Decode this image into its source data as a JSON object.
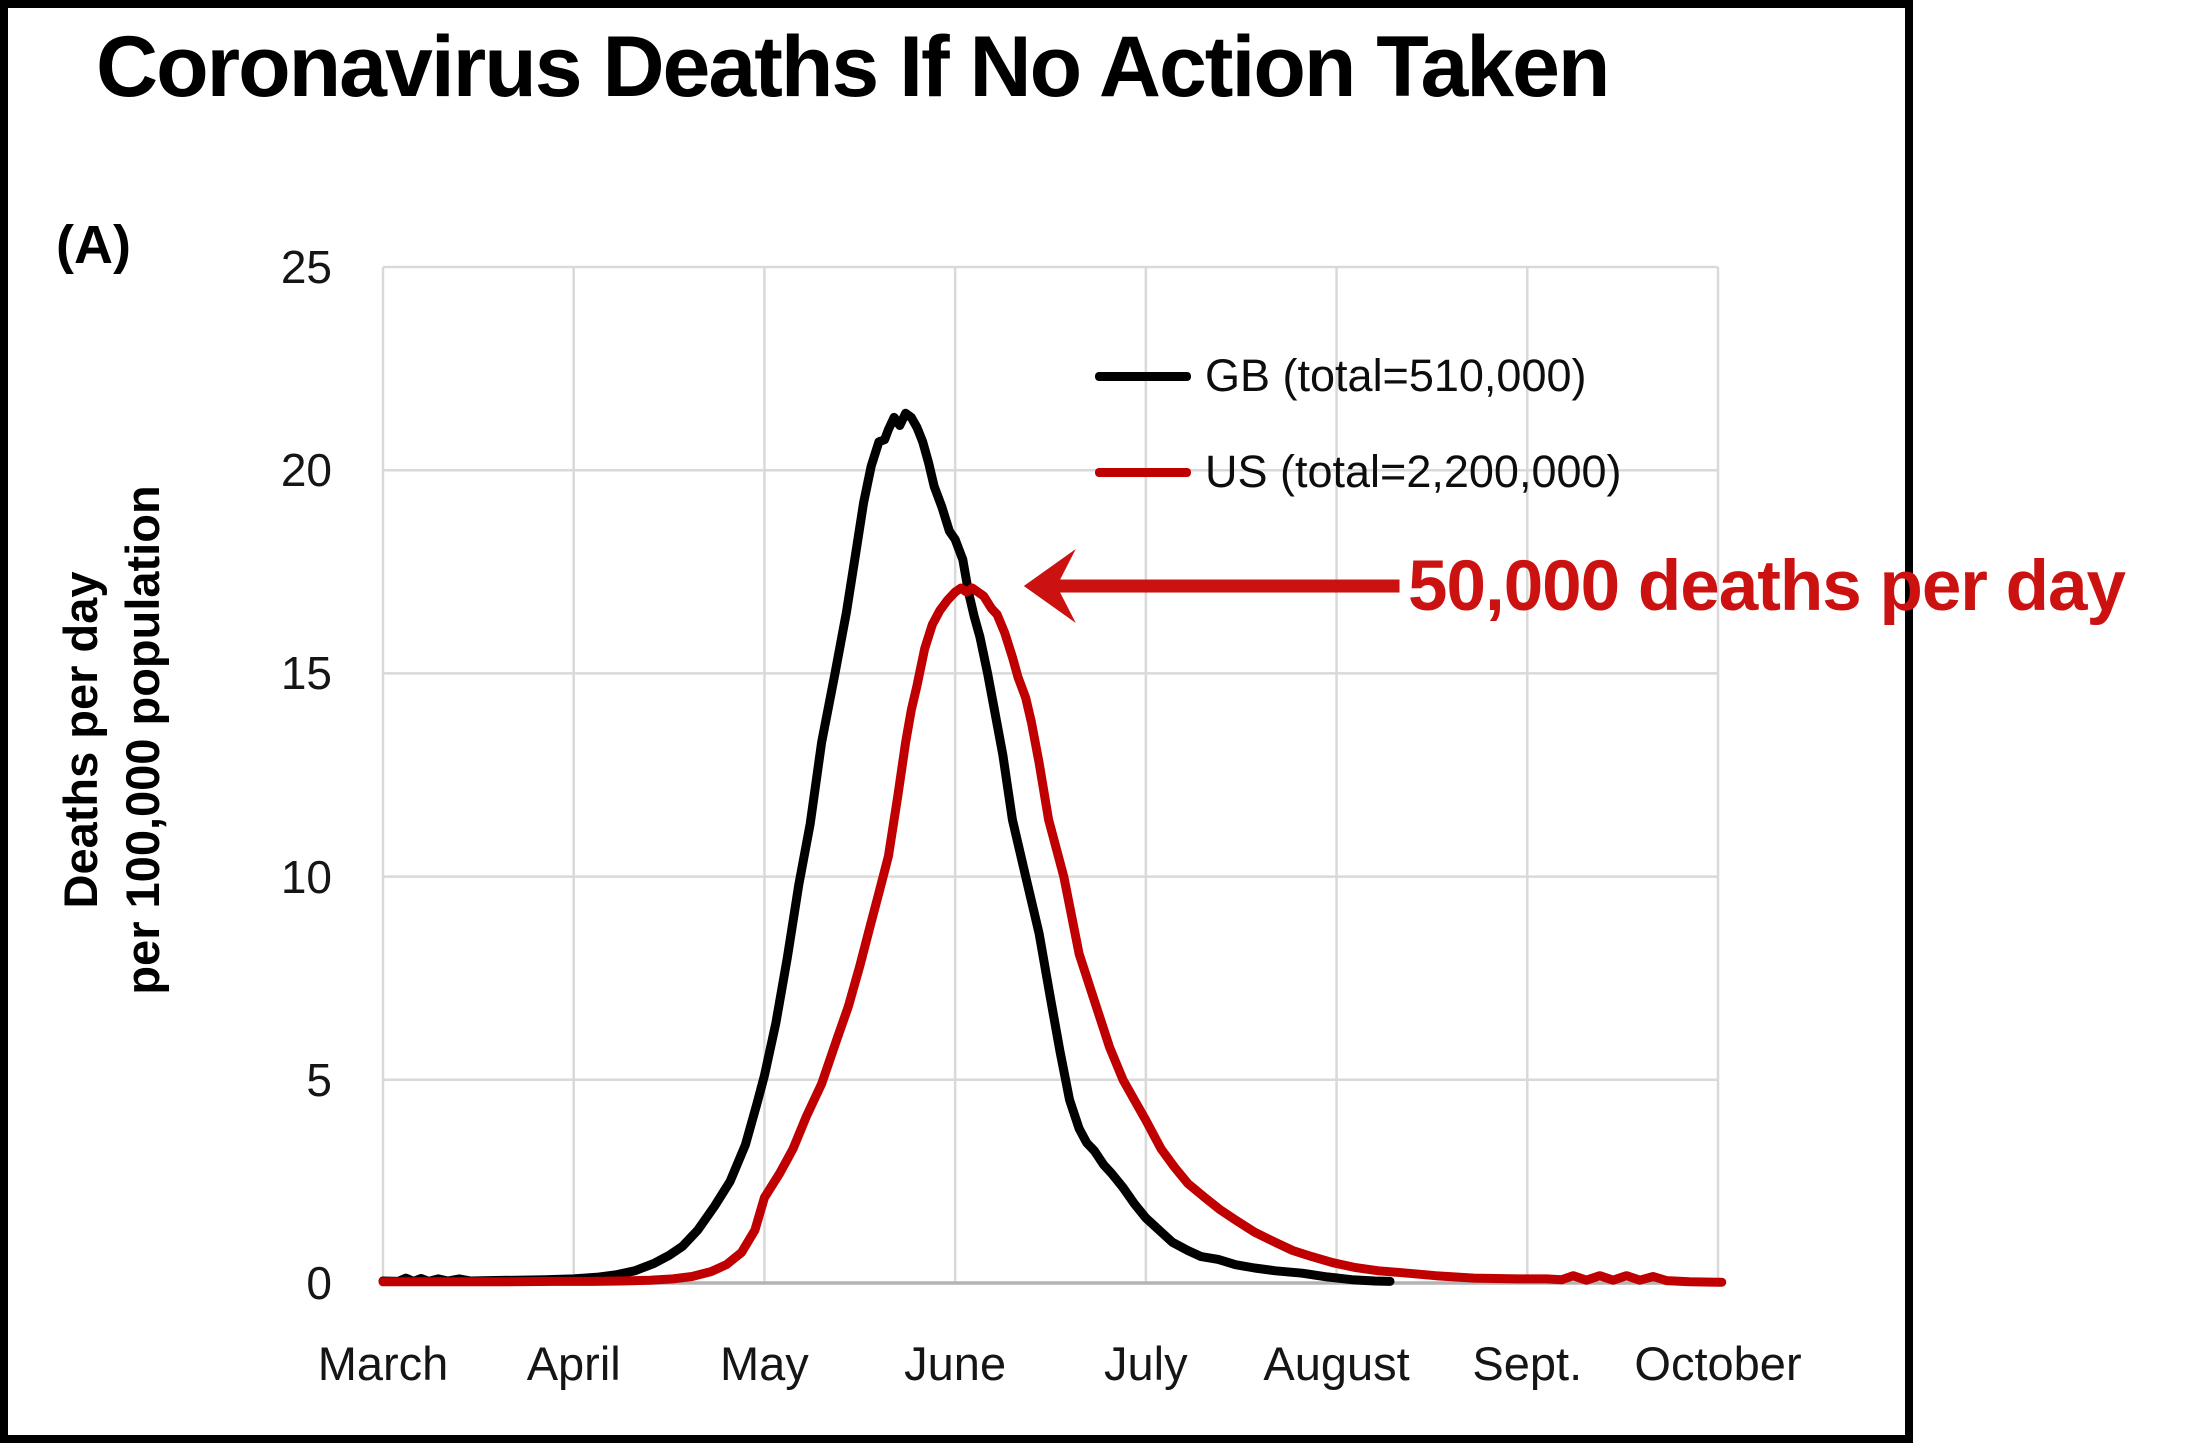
{
  "panel_label": "(A)",
  "title": "Coronavirus Deaths If No Action Taken",
  "y_axis_title": {
    "line1": "Deaths per day",
    "line2": "per 100,000 population"
  },
  "annotation": {
    "text": "50,000 deaths per day",
    "color": "#cc1111",
    "arrow_tip_x": 3.36,
    "arrow_tip_value": 17.15,
    "arrow_tail_x": 5.33
  },
  "chart_data": {
    "type": "line",
    "title": "Coronavirus Deaths If No Action Taken",
    "xlabel": "",
    "ylabel": "Deaths per day per 100,000 population",
    "ylim": [
      0,
      25
    ],
    "y_ticks": [
      0,
      5,
      10,
      15,
      20,
      25
    ],
    "x_range": [
      0,
      7
    ],
    "categories": [
      "March",
      "April",
      "May",
      "June",
      "July",
      "August",
      "Sept.",
      "October"
    ],
    "grid": true,
    "grid_color": "#d9d9d9",
    "axis_line_color": "#b3b3b3",
    "legend_position": "inside top-right",
    "series": [
      {
        "name": "GB",
        "label": "GB (total=510,000)",
        "color": "#000000",
        "points": [
          [
            0.0,
            0.05
          ],
          [
            0.08,
            0.04
          ],
          [
            0.12,
            0.12
          ],
          [
            0.16,
            0.04
          ],
          [
            0.2,
            0.11
          ],
          [
            0.24,
            0.04
          ],
          [
            0.29,
            0.1
          ],
          [
            0.34,
            0.05
          ],
          [
            0.4,
            0.1
          ],
          [
            0.46,
            0.05
          ],
          [
            0.55,
            0.06
          ],
          [
            0.7,
            0.07
          ],
          [
            0.85,
            0.08
          ],
          [
            1.0,
            0.1
          ],
          [
            1.12,
            0.14
          ],
          [
            1.22,
            0.2
          ],
          [
            1.32,
            0.3
          ],
          [
            1.42,
            0.48
          ],
          [
            1.5,
            0.68
          ],
          [
            1.57,
            0.9
          ],
          [
            1.65,
            1.3
          ],
          [
            1.74,
            1.9
          ],
          [
            1.82,
            2.5
          ],
          [
            1.9,
            3.4
          ],
          [
            1.96,
            4.4
          ],
          [
            2.0,
            5.1
          ],
          [
            2.06,
            6.4
          ],
          [
            2.12,
            8.0
          ],
          [
            2.18,
            9.8
          ],
          [
            2.24,
            11.3
          ],
          [
            2.3,
            13.3
          ],
          [
            2.37,
            15.0
          ],
          [
            2.43,
            16.5
          ],
          [
            2.48,
            18.0
          ],
          [
            2.52,
            19.2
          ],
          [
            2.56,
            20.1
          ],
          [
            2.6,
            20.7
          ],
          [
            2.63,
            20.75
          ],
          [
            2.65,
            21.0
          ],
          [
            2.68,
            21.3
          ],
          [
            2.71,
            21.1
          ],
          [
            2.74,
            21.4
          ],
          [
            2.77,
            21.3
          ],
          [
            2.8,
            21.05
          ],
          [
            2.83,
            20.7
          ],
          [
            2.86,
            20.2
          ],
          [
            2.89,
            19.6
          ],
          [
            2.93,
            19.1
          ],
          [
            2.97,
            18.5
          ],
          [
            3.0,
            18.3
          ],
          [
            3.04,
            17.8
          ],
          [
            3.07,
            17.0
          ],
          [
            3.1,
            16.4
          ],
          [
            3.13,
            15.9
          ],
          [
            3.17,
            15.0
          ],
          [
            3.21,
            14.0
          ],
          [
            3.25,
            13.0
          ],
          [
            3.3,
            11.4
          ],
          [
            3.37,
            10.0
          ],
          [
            3.44,
            8.6
          ],
          [
            3.5,
            7.0
          ],
          [
            3.55,
            5.7
          ],
          [
            3.6,
            4.5
          ],
          [
            3.65,
            3.8
          ],
          [
            3.69,
            3.45
          ],
          [
            3.73,
            3.25
          ],
          [
            3.78,
            2.9
          ],
          [
            3.82,
            2.7
          ],
          [
            3.88,
            2.35
          ],
          [
            3.94,
            1.95
          ],
          [
            4.0,
            1.6
          ],
          [
            4.07,
            1.3
          ],
          [
            4.14,
            1.0
          ],
          [
            4.22,
            0.8
          ],
          [
            4.29,
            0.65
          ],
          [
            4.38,
            0.58
          ],
          [
            4.47,
            0.45
          ],
          [
            4.57,
            0.37
          ],
          [
            4.68,
            0.3
          ],
          [
            4.82,
            0.24
          ],
          [
            4.95,
            0.15
          ],
          [
            5.08,
            0.08
          ],
          [
            5.2,
            0.05
          ],
          [
            5.28,
            0.04
          ]
        ]
      },
      {
        "name": "US",
        "label": "US (total=2,200,000)",
        "color": "#c00000",
        "points": [
          [
            0.0,
            0.03
          ],
          [
            0.3,
            0.03
          ],
          [
            0.6,
            0.03
          ],
          [
            0.9,
            0.04
          ],
          [
            1.1,
            0.04
          ],
          [
            1.25,
            0.05
          ],
          [
            1.4,
            0.07
          ],
          [
            1.52,
            0.1
          ],
          [
            1.62,
            0.16
          ],
          [
            1.72,
            0.28
          ],
          [
            1.8,
            0.45
          ],
          [
            1.88,
            0.75
          ],
          [
            1.95,
            1.3
          ],
          [
            2.0,
            2.1
          ],
          [
            2.08,
            2.7
          ],
          [
            2.15,
            3.3
          ],
          [
            2.22,
            4.1
          ],
          [
            2.3,
            4.9
          ],
          [
            2.38,
            6.0
          ],
          [
            2.44,
            6.8
          ],
          [
            2.5,
            7.8
          ],
          [
            2.55,
            8.7
          ],
          [
            2.6,
            9.6
          ],
          [
            2.65,
            10.5
          ],
          [
            2.7,
            12.0
          ],
          [
            2.74,
            13.3
          ],
          [
            2.77,
            14.1
          ],
          [
            2.8,
            14.7
          ],
          [
            2.84,
            15.6
          ],
          [
            2.88,
            16.2
          ],
          [
            2.92,
            16.55
          ],
          [
            2.96,
            16.8
          ],
          [
            3.0,
            17.0
          ],
          [
            3.03,
            17.1
          ],
          [
            3.06,
            17.0
          ],
          [
            3.09,
            17.1
          ],
          [
            3.12,
            17.0
          ],
          [
            3.15,
            16.9
          ],
          [
            3.19,
            16.6
          ],
          [
            3.22,
            16.45
          ],
          [
            3.26,
            16.0
          ],
          [
            3.3,
            15.4
          ],
          [
            3.33,
            14.9
          ],
          [
            3.37,
            14.4
          ],
          [
            3.4,
            13.8
          ],
          [
            3.44,
            12.8
          ],
          [
            3.49,
            11.4
          ],
          [
            3.57,
            10.0
          ],
          [
            3.65,
            8.1
          ],
          [
            3.74,
            6.8
          ],
          [
            3.81,
            5.8
          ],
          [
            3.88,
            5.0
          ],
          [
            3.94,
            4.5
          ],
          [
            4.0,
            4.0
          ],
          [
            4.08,
            3.3
          ],
          [
            4.15,
            2.85
          ],
          [
            4.22,
            2.45
          ],
          [
            4.31,
            2.1
          ],
          [
            4.39,
            1.8
          ],
          [
            4.47,
            1.55
          ],
          [
            4.57,
            1.25
          ],
          [
            4.68,
            1.0
          ],
          [
            4.77,
            0.8
          ],
          [
            4.87,
            0.65
          ],
          [
            4.98,
            0.5
          ],
          [
            5.1,
            0.38
          ],
          [
            5.22,
            0.3
          ],
          [
            5.35,
            0.25
          ],
          [
            5.52,
            0.18
          ],
          [
            5.72,
            0.12
          ],
          [
            5.95,
            0.1
          ],
          [
            6.1,
            0.1
          ],
          [
            6.18,
            0.08
          ],
          [
            6.24,
            0.18
          ],
          [
            6.31,
            0.07
          ],
          [
            6.38,
            0.18
          ],
          [
            6.45,
            0.07
          ],
          [
            6.52,
            0.18
          ],
          [
            6.59,
            0.07
          ],
          [
            6.66,
            0.16
          ],
          [
            6.73,
            0.06
          ],
          [
            6.85,
            0.03
          ],
          [
            7.0,
            0.02
          ],
          [
            7.02,
            0.02
          ]
        ]
      }
    ]
  }
}
